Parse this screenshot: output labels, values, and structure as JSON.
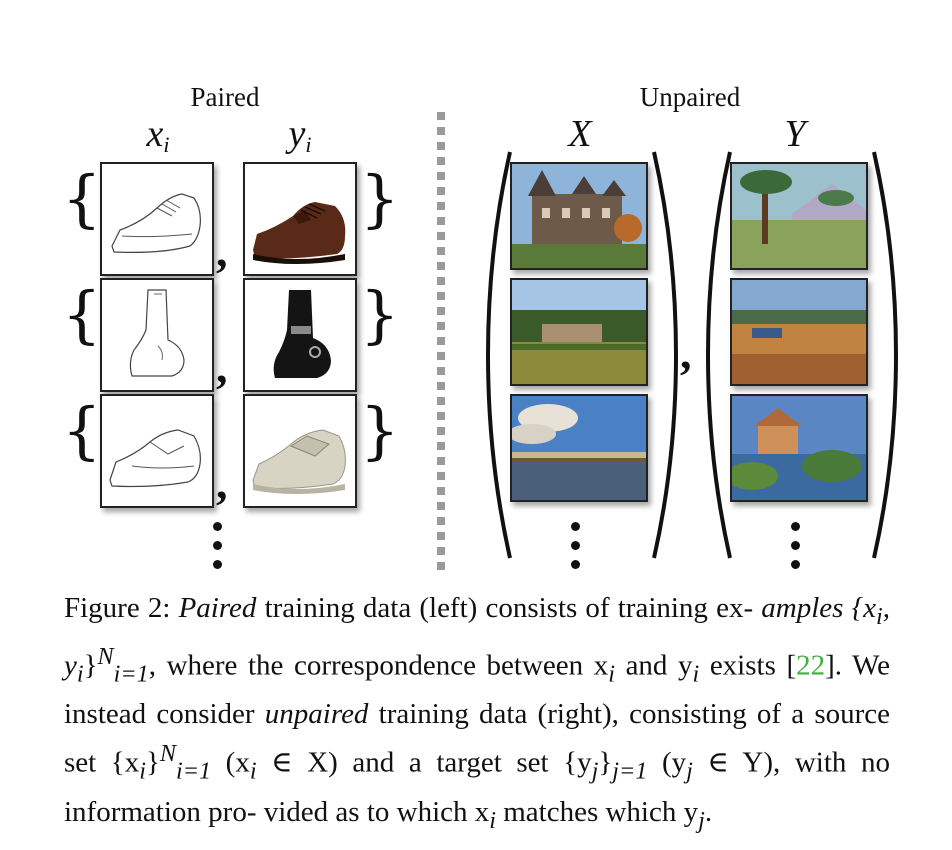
{
  "paired": {
    "title": "Paired",
    "x_label": "x",
    "x_sub": "i",
    "y_label": "y",
    "y_sub": "i"
  },
  "unpaired": {
    "title": "Unpaired",
    "x_label": "X",
    "y_label": "Y"
  },
  "caption": {
    "p1": "Figure 2: ",
    "p2": "Paired",
    "p3": " training data (left) consists of training ex-",
    "p4": "amples {x",
    "p5": "i",
    "p6": ", y",
    "p7": "i",
    "p8": "}",
    "p9": "N",
    "p10": "i=1",
    "p11": ", where the correspondence between x",
    "p12": "i",
    "p13": "and y",
    "p14": "i",
    "p15": " exists [",
    "p16": "22",
    "p17": "].  We instead consider ",
    "p18": "unpaired",
    "p19": " training",
    "p20": "data (right), consisting of a source set {x",
    "p21": "i",
    "p22": "}",
    "p23": "N",
    "p24": "i=1",
    "p25": " (x",
    "p26": "i",
    "p27": " ∈  X)",
    "p28": "and a target set {y",
    "p29": "j",
    "p30": "}",
    "p31": "j=1",
    "p32": " (y",
    "p33": "j",
    "p34": " ∈ Y), with no information pro-",
    "p35": "vided as to which x",
    "p36": "i",
    "p37": " matches which y",
    "p38": "j",
    "p39": "."
  }
}
